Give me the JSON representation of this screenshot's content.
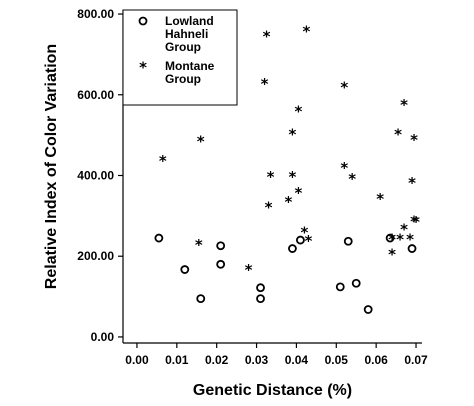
{
  "chart_data": {
    "type": "scatter",
    "title": "",
    "xlabel": "Genetic Distance (%)",
    "ylabel": "Relative Index of Color Variation",
    "xlim": [
      -0.0035,
      0.0715
    ],
    "ylim": [
      -15,
      810
    ],
    "xticks": [
      0.0,
      0.01,
      0.02,
      0.03,
      0.04,
      0.05,
      0.06,
      0.07
    ],
    "xtick_labels": [
      "0.00",
      "0.01",
      "0.02",
      "0.03",
      "0.04",
      "0.05",
      "0.06",
      "0.07"
    ],
    "yticks": [
      0,
      200,
      400,
      600,
      800
    ],
    "ytick_labels": [
      "0.00",
      "200.00",
      "400.00",
      "600.00",
      "800.00"
    ],
    "grid": false,
    "legend_position": "top-left",
    "series": [
      {
        "name": "Lowland Hahneli Group",
        "legend_lines": [
          "Lowland",
          "Hahneli",
          "Group"
        ],
        "marker": "circle",
        "points": [
          [
            0.0055,
            245
          ],
          [
            0.012,
            167
          ],
          [
            0.016,
            95
          ],
          [
            0.021,
            180
          ],
          [
            0.021,
            226
          ],
          [
            0.031,
            122
          ],
          [
            0.031,
            95
          ],
          [
            0.039,
            219
          ],
          [
            0.041,
            240
          ],
          [
            0.051,
            124
          ],
          [
            0.053,
            237
          ],
          [
            0.055,
            133
          ],
          [
            0.058,
            68
          ],
          [
            0.0635,
            245
          ],
          [
            0.069,
            219
          ]
        ]
      },
      {
        "name": "Montane Group",
        "legend_lines": [
          "Montane",
          "Group"
        ],
        "marker": "star",
        "points": [
          [
            0.0065,
            440
          ],
          [
            0.0155,
            232
          ],
          [
            0.016,
            488
          ],
          [
            0.028,
            170
          ],
          [
            0.032,
            630
          ],
          [
            0.0325,
            748
          ],
          [
            0.033,
            325
          ],
          [
            0.0335,
            400
          ],
          [
            0.038,
            338
          ],
          [
            0.039,
            400
          ],
          [
            0.039,
            505
          ],
          [
            0.0405,
            360
          ],
          [
            0.0405,
            562
          ],
          [
            0.042,
            262
          ],
          [
            0.0425,
            760
          ],
          [
            0.043,
            242
          ],
          [
            0.052,
            622
          ],
          [
            0.052,
            422
          ],
          [
            0.054,
            395
          ],
          [
            0.061,
            345
          ],
          [
            0.064,
            208
          ],
          [
            0.064,
            245
          ],
          [
            0.0655,
            505
          ],
          [
            0.066,
            245
          ],
          [
            0.067,
            578
          ],
          [
            0.067,
            270
          ],
          [
            0.0685,
            245
          ],
          [
            0.069,
            385
          ],
          [
            0.0695,
            492
          ],
          [
            0.0695,
            290
          ],
          [
            0.07,
            288
          ]
        ]
      }
    ]
  }
}
